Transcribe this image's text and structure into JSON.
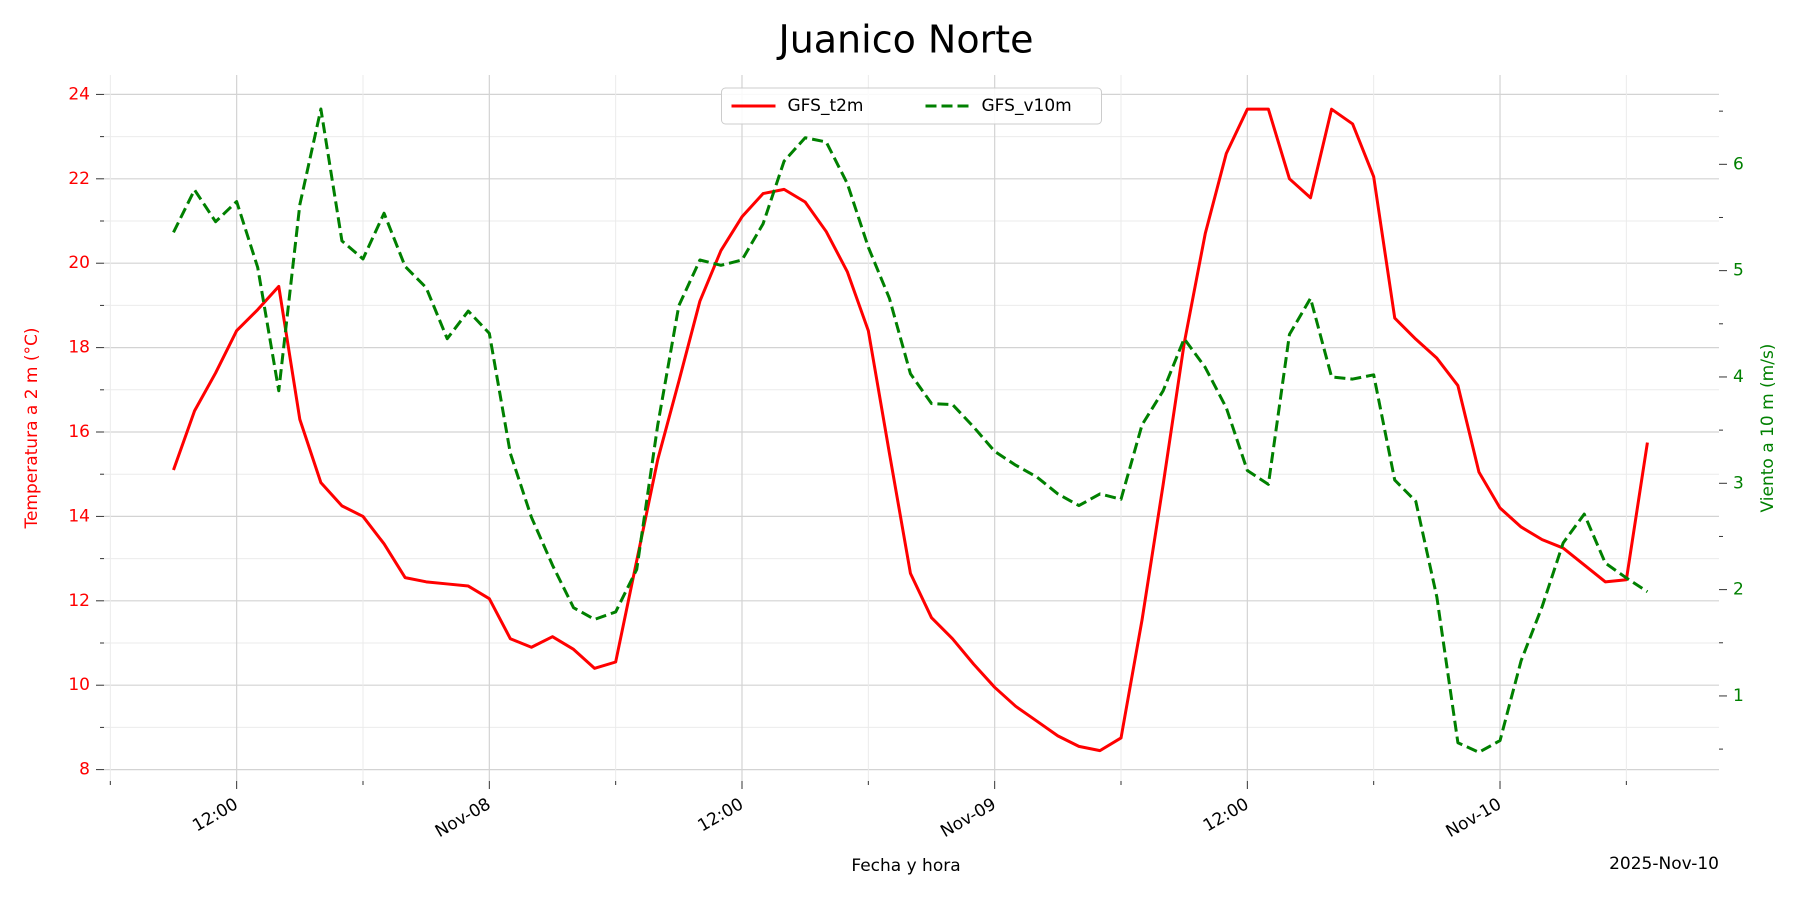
{
  "chart_data": {
    "type": "line",
    "title": "Juanico Norte",
    "xlabel": "Fecha y hora",
    "ylabel": "Temperatura a 2 m (°C)",
    "y2label": "Viento a 10 m (m/s)",
    "x_offset_label": "2025-Nov-10",
    "legend": "upper center",
    "grid": true,
    "xlim": [
      "2025-11-07T05:42",
      "2025-11-10T10:24"
    ],
    "xticks": [
      {
        "value": "2025-11-07T12:00",
        "label": "12:00"
      },
      {
        "value": "2025-11-08T00:00",
        "label": "Nov-08"
      },
      {
        "value": "2025-11-08T12:00",
        "label": "12:00"
      },
      {
        "value": "2025-11-09T00:00",
        "label": "Nov-09"
      },
      {
        "value": "2025-11-09T12:00",
        "label": "12:00"
      },
      {
        "value": "2025-11-10T00:00",
        "label": "Nov-10"
      }
    ],
    "xminor_ticks": [
      "2025-11-07T06:00",
      "2025-11-07T18:00",
      "2025-11-08T06:00",
      "2025-11-08T18:00",
      "2025-11-09T06:00",
      "2025-11-09T18:00",
      "2025-11-10T06:00"
    ],
    "ylim": [
      7.73,
      24.46
    ],
    "yticks": [
      8,
      10,
      12,
      14,
      16,
      18,
      20,
      22,
      24
    ],
    "yminor_ticks": [
      9,
      11,
      13,
      15,
      17,
      19,
      21,
      23
    ],
    "y2lim": [
      0.2,
      6.84
    ],
    "y2ticks": [
      1,
      2,
      3,
      4,
      5,
      6
    ],
    "y2minor_ticks": [
      0.5,
      1.5,
      2.5,
      3.5,
      4.5,
      5.5,
      6.5
    ],
    "x": [
      "2025-11-07T09:00",
      "2025-11-07T10:00",
      "2025-11-07T11:00",
      "2025-11-07T12:00",
      "2025-11-07T13:00",
      "2025-11-07T14:00",
      "2025-11-07T15:00",
      "2025-11-07T16:00",
      "2025-11-07T17:00",
      "2025-11-07T18:00",
      "2025-11-07T19:00",
      "2025-11-07T20:00",
      "2025-11-07T21:00",
      "2025-11-07T22:00",
      "2025-11-07T23:00",
      "2025-11-08T00:00",
      "2025-11-08T01:00",
      "2025-11-08T02:00",
      "2025-11-08T03:00",
      "2025-11-08T04:00",
      "2025-11-08T05:00",
      "2025-11-08T06:00",
      "2025-11-08T07:00",
      "2025-11-08T08:00",
      "2025-11-08T09:00",
      "2025-11-08T10:00",
      "2025-11-08T11:00",
      "2025-11-08T12:00",
      "2025-11-08T13:00",
      "2025-11-08T14:00",
      "2025-11-08T15:00",
      "2025-11-08T16:00",
      "2025-11-08T17:00",
      "2025-11-08T18:00",
      "2025-11-08T19:00",
      "2025-11-08T20:00",
      "2025-11-08T21:00",
      "2025-11-08T22:00",
      "2025-11-08T23:00",
      "2025-11-09T00:00",
      "2025-11-09T01:00",
      "2025-11-09T02:00",
      "2025-11-09T03:00",
      "2025-11-09T04:00",
      "2025-11-09T05:00",
      "2025-11-09T06:00",
      "2025-11-09T07:00",
      "2025-11-09T08:00",
      "2025-11-09T09:00",
      "2025-11-09T10:00",
      "2025-11-09T11:00",
      "2025-11-09T12:00",
      "2025-11-09T13:00",
      "2025-11-09T14:00",
      "2025-11-09T15:00",
      "2025-11-09T16:00",
      "2025-11-09T17:00",
      "2025-11-09T18:00",
      "2025-11-09T19:00",
      "2025-11-09T20:00",
      "2025-11-09T21:00",
      "2025-11-09T22:00",
      "2025-11-09T23:00",
      "2025-11-10T00:00",
      "2025-11-10T01:00",
      "2025-11-10T02:00",
      "2025-11-10T03:00",
      "2025-11-10T04:00",
      "2025-11-10T05:00",
      "2025-11-10T06:00",
      "2025-11-10T07:00"
    ],
    "series": [
      {
        "name": "GFS_t2m",
        "color": "#ff0000",
        "linestyle": "solid",
        "axis": "y",
        "values": [
          15.1,
          16.5,
          17.4,
          18.4,
          18.9,
          19.45,
          16.3,
          14.8,
          14.25,
          14.0,
          13.35,
          12.55,
          12.45,
          12.4,
          12.35,
          12.05,
          11.1,
          10.9,
          11.15,
          10.85,
          10.4,
          10.55,
          12.95,
          15.35,
          17.2,
          19.1,
          20.3,
          21.1,
          21.65,
          21.75,
          21.45,
          20.75,
          19.8,
          18.4,
          15.5,
          12.65,
          11.6,
          11.1,
          10.5,
          9.95,
          9.5,
          9.15,
          8.8,
          8.55,
          8.45,
          8.75,
          11.55,
          14.75,
          18.1,
          20.7,
          22.6,
          23.65,
          23.65,
          22.0,
          21.55,
          23.65,
          23.3,
          22.05,
          18.7,
          18.2,
          17.75,
          17.1,
          15.05,
          14.2,
          13.75,
          13.45,
          13.25,
          12.85,
          12.45,
          12.5,
          15.75
        ]
      },
      {
        "name": "GFS_v10m",
        "color": "#008000",
        "linestyle": "dashed",
        "axis": "y2",
        "values": [
          5.36,
          5.76,
          5.46,
          5.65,
          5.03,
          3.87,
          5.62,
          6.52,
          5.28,
          5.11,
          5.54,
          5.04,
          4.84,
          4.36,
          4.62,
          4.41,
          3.28,
          2.68,
          2.23,
          1.83,
          1.72,
          1.79,
          2.19,
          3.55,
          4.67,
          5.1,
          5.05,
          5.1,
          5.44,
          6.03,
          6.25,
          6.21,
          5.82,
          5.22,
          4.74,
          4.03,
          3.75,
          3.74,
          3.53,
          3.3,
          3.17,
          3.06,
          2.9,
          2.79,
          2.9,
          2.85,
          3.55,
          3.87,
          4.36,
          4.09,
          3.71,
          3.12,
          2.99,
          4.4,
          4.74,
          4.0,
          3.98,
          4.02,
          3.03,
          2.83,
          1.93,
          0.56,
          0.47,
          0.58,
          1.33,
          1.84,
          2.44,
          2.71,
          2.25,
          2.11,
          1.98
        ]
      }
    ]
  }
}
